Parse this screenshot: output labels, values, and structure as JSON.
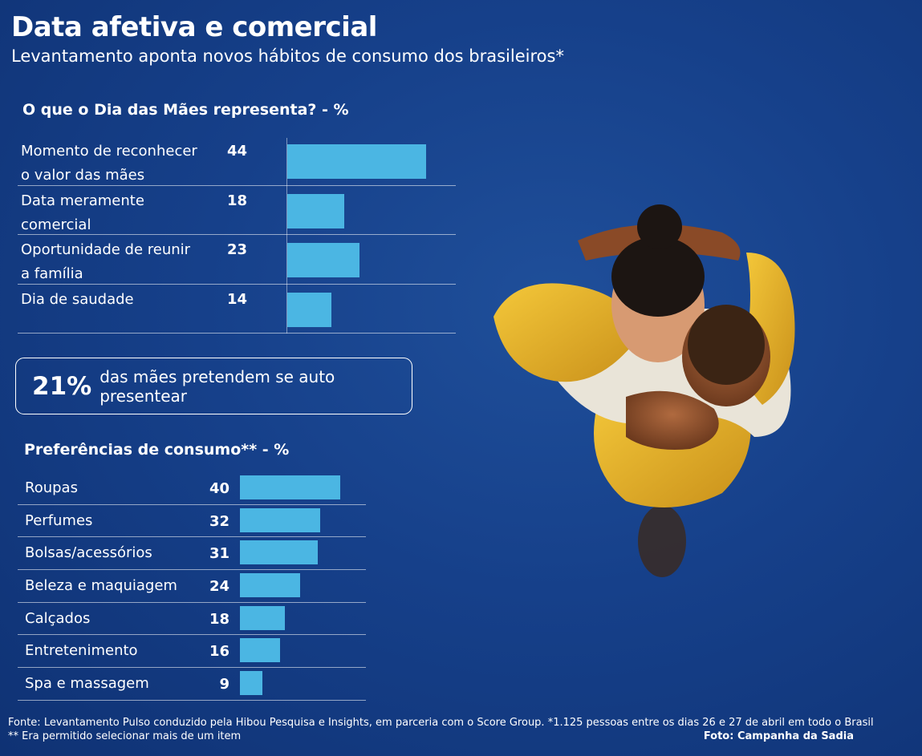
{
  "header": {
    "title": "Data afetiva e comercial",
    "subtitle": "Levantamento aponta novos hábitos de consumo dos brasileiros*"
  },
  "chart_data": [
    {
      "type": "bar",
      "title": "O que o Dia das Mães representa? - %",
      "categories": [
        "Momento de reconhecer o valor das mães",
        "Data meramente comercial",
        "Oportunidade de reunir a família",
        "Dia de saudade"
      ],
      "category_lines": [
        [
          "Momento de reconhecer",
          "o valor das mães"
        ],
        [
          "Data meramente",
          "comercial"
        ],
        [
          "Oportunidade de reunir",
          "a família"
        ],
        [
          "Dia de saudade",
          ""
        ]
      ],
      "values": [
        44,
        18,
        23,
        14
      ],
      "color": "#4bb6e3"
    },
    {
      "type": "bar",
      "title": "Preferências de consumo** - %",
      "categories": [
        "Roupas",
        "Perfumes",
        "Bolsas/acessórios",
        "Beleza e maquiagem",
        "Calçados",
        "Entretenimento",
        "Spa e massagem"
      ],
      "values": [
        40,
        32,
        31,
        24,
        18,
        16,
        9
      ],
      "color": "#4bb6e3"
    }
  ],
  "highlight": {
    "big": "21%",
    "text": "das mães pretendem se auto presentear"
  },
  "footer": {
    "source_line1": "Fonte: Levantamento Pulso conduzido pela Hibou Pesquisa e Insights, em parceria com o Score Group. *1.125 pessoas entre os dias 26 e 27 de abril em todo o Brasil",
    "source_line2": "** Era permitido selecionar mais de um item",
    "credit": "Foto: Campanha da Sadia"
  },
  "colors": {
    "background": "#16408a",
    "bar": "#4bb6e3",
    "text": "#ffffff"
  }
}
